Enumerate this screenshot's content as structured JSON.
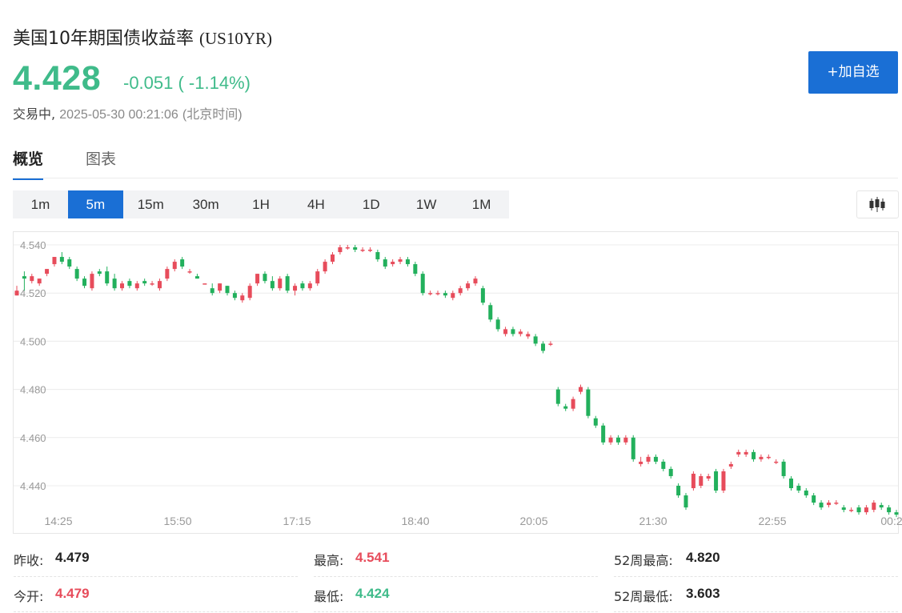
{
  "header": {
    "title": "美国10年期国债收益率",
    "code": "(US10YR)",
    "price": "4.428",
    "change": "-0.051 ( -1.14%)",
    "status": "交易中,",
    "datetime": "2025-05-30 00:21:06",
    "timezone": "(北京时间)",
    "add_button": "+加自选"
  },
  "tabs": [
    {
      "label": "概览",
      "active": true
    },
    {
      "label": "图表",
      "active": false
    }
  ],
  "timeframes": [
    "1m",
    "5m",
    "15m",
    "30m",
    "1H",
    "4H",
    "1D",
    "1W",
    "1M"
  ],
  "timeframe_active": "5m",
  "chart_type_icon": "candlestick-icon",
  "colors": {
    "up": "#e74c5b",
    "down": "#22b05c",
    "accent": "#1a6fd5",
    "price_down": "#3fbb8a"
  },
  "chart_data": {
    "type": "candlestick",
    "ylim": [
      4.428,
      4.545
    ],
    "y_ticks": [
      4.54,
      4.52,
      4.5,
      4.48,
      4.46,
      4.44
    ],
    "y_tick_labels": [
      "4.540",
      "4.520",
      "4.500",
      "4.480",
      "4.460",
      "4.440"
    ],
    "x_tick_labels": [
      "14:25",
      "15:50",
      "17:15",
      "18:40",
      "20:05",
      "21:30",
      "22:55",
      "00:2"
    ],
    "grid": true,
    "candles": [
      [
        4.519,
        4.523,
        4.521,
        4.519
      ],
      [
        4.527,
        4.529,
        4.526,
        4.521
      ],
      [
        4.525,
        4.528,
        4.527,
        4.524
      ],
      [
        4.524,
        4.526,
        4.526,
        4.523
      ],
      [
        4.528,
        4.53,
        4.53,
        4.527
      ],
      [
        4.532,
        4.535,
        4.535,
        4.531
      ],
      [
        4.535,
        4.537,
        4.533,
        4.532
      ],
      [
        4.534,
        4.535,
        4.531,
        4.53
      ],
      [
        4.53,
        4.531,
        4.526,
        4.525
      ],
      [
        4.526,
        4.527,
        4.523,
        4.522
      ],
      [
        4.522,
        4.529,
        4.528,
        4.521
      ],
      [
        4.529,
        4.53,
        4.528,
        4.527
      ],
      [
        4.529,
        4.531,
        4.524,
        4.523
      ],
      [
        4.526,
        4.528,
        4.522,
        4.521
      ],
      [
        4.522,
        4.525,
        4.524,
        4.521
      ],
      [
        4.525,
        4.526,
        4.523,
        4.522
      ],
      [
        4.522,
        4.525,
        4.524,
        4.521
      ],
      [
        4.525,
        4.526,
        4.524,
        4.523
      ],
      [
        4.524,
        4.525,
        4.524,
        4.523
      ],
      [
        4.522,
        4.526,
        4.525,
        4.521
      ],
      [
        4.526,
        4.531,
        4.53,
        4.525
      ],
      [
        4.53,
        4.534,
        4.533,
        4.529
      ],
      [
        4.534,
        4.535,
        4.531,
        4.53
      ],
      [
        4.529,
        4.53,
        4.529,
        4.528
      ],
      [
        4.527,
        4.528,
        4.526,
        4.526
      ],
      [
        4.524,
        4.524,
        4.524,
        4.524
      ],
      [
        4.522,
        4.524,
        4.52,
        4.519
      ],
      [
        4.521,
        4.524,
        4.524,
        4.52
      ],
      [
        4.523,
        4.523,
        4.52,
        4.519
      ],
      [
        4.52,
        4.521,
        4.518,
        4.517
      ],
      [
        4.517,
        4.52,
        4.519,
        4.516
      ],
      [
        4.518,
        4.524,
        4.523,
        4.517
      ],
      [
        4.524,
        4.528,
        4.528,
        4.523
      ],
      [
        4.528,
        4.529,
        4.525,
        4.524
      ],
      [
        4.525,
        4.527,
        4.522,
        4.521
      ],
      [
        4.522,
        4.527,
        4.526,
        4.521
      ],
      [
        4.527,
        4.528,
        4.521,
        4.52
      ],
      [
        4.521,
        4.524,
        4.523,
        4.519
      ],
      [
        4.524,
        4.525,
        4.522,
        4.521
      ],
      [
        4.522,
        4.525,
        4.524,
        4.521
      ],
      [
        4.524,
        4.53,
        4.529,
        4.523
      ],
      [
        4.529,
        4.534,
        4.533,
        4.528
      ],
      [
        4.533,
        4.537,
        4.536,
        4.532
      ],
      [
        4.537,
        4.54,
        4.539,
        4.536
      ],
      [
        4.539,
        4.54,
        4.539,
        4.538
      ],
      [
        4.539,
        4.54,
        4.538,
        4.537
      ],
      [
        4.538,
        4.539,
        4.538,
        4.537
      ],
      [
        4.538,
        4.539,
        4.538,
        4.537
      ],
      [
        4.537,
        4.538,
        4.534,
        4.533
      ],
      [
        4.534,
        4.535,
        4.531,
        4.53
      ],
      [
        4.532,
        4.534,
        4.533,
        4.531
      ],
      [
        4.533,
        4.535,
        4.534,
        4.532
      ],
      [
        4.534,
        4.535,
        4.532,
        4.531
      ],
      [
        4.532,
        4.533,
        4.528,
        4.527
      ],
      [
        4.528,
        4.529,
        4.52,
        4.519
      ],
      [
        4.52,
        4.521,
        4.52,
        4.519
      ],
      [
        4.52,
        4.521,
        4.52,
        4.519
      ],
      [
        4.52,
        4.521,
        4.519,
        4.518
      ],
      [
        4.518,
        4.521,
        4.52,
        4.517
      ],
      [
        4.52,
        4.523,
        4.522,
        4.519
      ],
      [
        4.522,
        4.525,
        4.524,
        4.521
      ],
      [
        4.524,
        4.527,
        4.526,
        4.523
      ],
      [
        4.522,
        4.523,
        4.516,
        4.515
      ],
      [
        4.515,
        4.516,
        4.509,
        4.508
      ],
      [
        4.509,
        4.51,
        4.505,
        4.504
      ],
      [
        4.503,
        4.506,
        4.505,
        4.502
      ],
      [
        4.505,
        4.506,
        4.503,
        4.502
      ],
      [
        4.503,
        4.505,
        4.504,
        4.502
      ],
      [
        4.502,
        4.504,
        4.503,
        4.501
      ],
      [
        4.502,
        4.503,
        4.499,
        4.498
      ],
      [
        4.499,
        4.5,
        4.496,
        4.495
      ],
      [
        4.499,
        4.5,
        4.499,
        4.498
      ],
      [
        4.48,
        4.481,
        4.474,
        4.473
      ],
      [
        4.473,
        4.474,
        4.472,
        4.471
      ],
      [
        4.472,
        4.477,
        4.476,
        4.471
      ],
      [
        4.479,
        4.482,
        4.481,
        4.478
      ],
      [
        4.48,
        4.481,
        4.469,
        4.468
      ],
      [
        4.468,
        4.469,
        4.465,
        4.464
      ],
      [
        4.465,
        4.466,
        4.458,
        4.457
      ],
      [
        4.458,
        4.461,
        4.46,
        4.457
      ],
      [
        4.46,
        4.461,
        4.458,
        4.457
      ],
      [
        4.458,
        4.461,
        4.46,
        4.457
      ],
      [
        4.46,
        4.461,
        4.451,
        4.45
      ],
      [
        4.449,
        4.452,
        4.45,
        4.448
      ],
      [
        4.45,
        4.453,
        4.452,
        4.449
      ],
      [
        4.452,
        4.453,
        4.45,
        4.449
      ],
      [
        4.45,
        4.451,
        4.447,
        4.446
      ],
      [
        4.447,
        4.448,
        4.444,
        4.443
      ],
      [
        4.44,
        4.441,
        4.436,
        4.435
      ],
      [
        4.436,
        4.437,
        4.431,
        4.43
      ],
      [
        4.439,
        4.446,
        4.445,
        4.438
      ],
      [
        4.44,
        4.445,
        4.444,
        4.439
      ],
      [
        4.443,
        4.445,
        4.444,
        4.442
      ],
      [
        4.446,
        4.447,
        4.438,
        4.437
      ],
      [
        4.438,
        4.447,
        4.446,
        4.437
      ],
      [
        4.448,
        4.45,
        4.449,
        4.447
      ],
      [
        4.453,
        4.455,
        4.454,
        4.452
      ],
      [
        4.453,
        4.455,
        4.454,
        4.452
      ],
      [
        4.454,
        4.455,
        4.451,
        4.45
      ],
      [
        4.451,
        4.453,
        4.452,
        4.45
      ],
      [
        4.452,
        4.453,
        4.452,
        4.451
      ],
      [
        4.45,
        4.451,
        4.45,
        4.449
      ],
      [
        4.45,
        4.451,
        4.444,
        4.443
      ],
      [
        4.443,
        4.444,
        4.439,
        4.438
      ],
      [
        4.44,
        4.441,
        4.438,
        4.437
      ],
      [
        4.438,
        4.439,
        4.436,
        4.435
      ],
      [
        4.436,
        4.437,
        4.433,
        4.432
      ],
      [
        4.433,
        4.434,
        4.431,
        4.43
      ],
      [
        4.432,
        4.434,
        4.433,
        4.431
      ],
      [
        4.433,
        4.434,
        4.433,
        4.432
      ],
      [
        4.431,
        4.432,
        4.43,
        4.429
      ],
      [
        4.43,
        4.431,
        4.43,
        4.429
      ],
      [
        4.431,
        4.432,
        4.429,
        4.428
      ],
      [
        4.429,
        4.432,
        4.431,
        4.428
      ],
      [
        4.43,
        4.434,
        4.433,
        4.429
      ],
      [
        4.432,
        4.433,
        4.431,
        4.43
      ],
      [
        4.431,
        4.432,
        4.429,
        4.428
      ],
      [
        4.429,
        4.43,
        4.428,
        4.427
      ]
    ]
  },
  "stats": [
    [
      {
        "label": "昨收:",
        "value": "4.479",
        "tone": "neutral"
      },
      {
        "label": "最高:",
        "value": "4.541",
        "tone": "up"
      },
      {
        "label": "52周最高:",
        "value": "4.820",
        "tone": "neutral"
      }
    ],
    [
      {
        "label": "今开:",
        "value": "4.479",
        "tone": "up"
      },
      {
        "label": "最低:",
        "value": "4.424",
        "tone": "down"
      },
      {
        "label": "52周最低:",
        "value": "3.603",
        "tone": "neutral"
      }
    ]
  ]
}
